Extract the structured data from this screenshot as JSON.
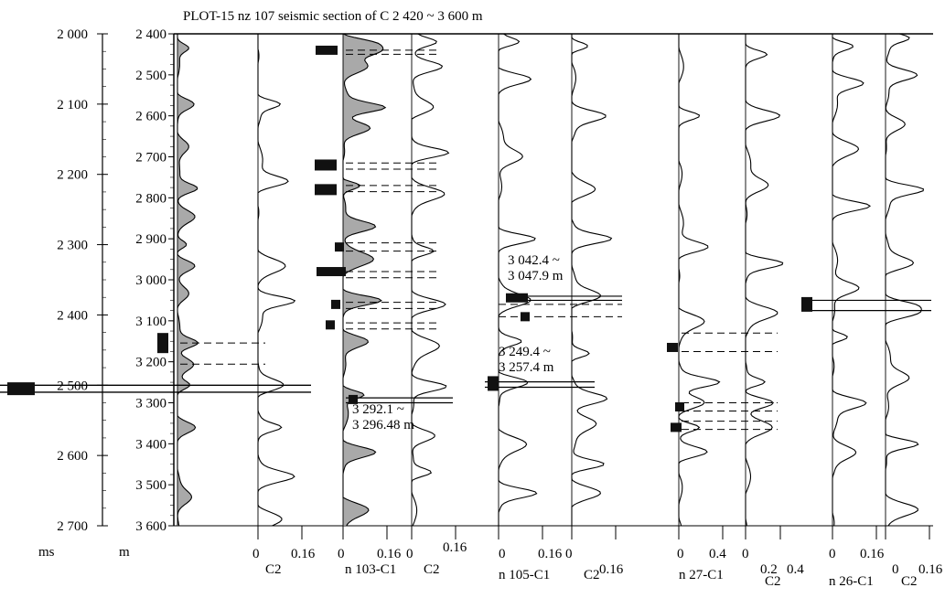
{
  "chart_data": {
    "type": "line",
    "title": "PLOT-15 nz 107  seismic section  of  C  2 420 ~  3 600 m",
    "time_axis": {
      "unit_label": "ms",
      "range": [
        2000,
        2700
      ],
      "ticks": [
        "2 000",
        "2 100",
        "2 200",
        "2 300",
        "2 400",
        "2 500",
        "2 600",
        "2 700"
      ]
    },
    "depth_axis": {
      "unit_label": "m",
      "range": [
        2400,
        3600
      ],
      "ticks": [
        "2 400",
        "2 500",
        "2 600",
        "2 700",
        "2 800",
        "2 900",
        "3 000",
        "3 100",
        "3 200",
        "3 300",
        "3 400",
        "3 500",
        "3 600"
      ]
    },
    "bottom_labels": [
      {
        "text": "0",
        "row": 1
      },
      {
        "text": "0.16",
        "row": 1
      },
      {
        "text": "C2",
        "row": 2
      },
      {
        "text": "0",
        "row": 1
      },
      {
        "text": "0.16",
        "row": 1
      },
      {
        "text": "0",
        "row": 1
      },
      {
        "text": "0.16",
        "row": 0
      },
      {
        "text": "n 103-C1",
        "row": 2
      },
      {
        "text": "C2",
        "row": 2
      },
      {
        "text": "0",
        "row": 1
      },
      {
        "text": "0.16",
        "row": 1
      },
      {
        "text": "0",
        "row": 1
      },
      {
        "text": "0.16",
        "row": 2
      },
      {
        "text": "n 105-C1",
        "row": 3
      },
      {
        "text": "C2",
        "row": 3
      },
      {
        "text": "0",
        "row": 1
      },
      {
        "text": "0.4",
        "row": 1
      },
      {
        "text": "0",
        "row": 1
      },
      {
        "text": "0.2",
        "row": 2
      },
      {
        "text": "0.4",
        "row": 2
      },
      {
        "text": "n 27-C1",
        "row": 3
      },
      {
        "text": "C2",
        "row": 4
      },
      {
        "text": "0",
        "row": 1
      },
      {
        "text": "0.16",
        "row": 1
      },
      {
        "text": "0",
        "row": 2
      },
      {
        "text": "0.16",
        "row": 2
      },
      {
        "text": "n 26-C1",
        "row": 4
      },
      {
        "text": "C2",
        "row": 4
      }
    ],
    "annotations": [
      {
        "lines": [
          "3 292.1 ~",
          "3 296.48 m"
        ],
        "depth_top": 3292.1,
        "depth_bottom": 3296.48
      },
      {
        "lines": [
          "3 042.4 ~",
          "3 047.9 m"
        ],
        "depth_top": 3042.4,
        "depth_bottom": 3047.9
      },
      {
        "lines": [
          "3 249.4 ~",
          "3 257.4 m"
        ],
        "depth_top": 3249.4,
        "depth_bottom": 3257.4
      }
    ],
    "traces": [
      {
        "track": 0,
        "baseline_time_ms": "left edge",
        "fill": true,
        "peaks_time_ms": [
          2020,
          2100,
          2160,
          2220,
          2260,
          2300,
          2330,
          2370,
          2440,
          2470,
          2500,
          2560,
          2660
        ]
      },
      {
        "track": 1,
        "peaks_time_ms": [
          2100,
          2210,
          2330,
          2380,
          2500,
          2560,
          2630,
          2690
        ]
      },
      {
        "track": 2,
        "peaks_depth_m": [
          2420,
          2440,
          2480,
          2580,
          2630,
          2770,
          2870,
          2950,
          3050,
          3150,
          3280,
          3420,
          3560
        ],
        "fill": true
      },
      {
        "track": 3,
        "peaks_depth_m": [
          2420,
          2480,
          2580,
          2690,
          2790,
          2930,
          3060,
          3160,
          3260,
          3380,
          3470
        ]
      },
      {
        "track": 4,
        "peaks_depth_m": [
          2420,
          2510,
          2700,
          2900,
          3050,
          3150,
          3250,
          3400,
          3520
        ]
      },
      {
        "track": 5,
        "peaks_depth_m": [
          2430,
          2600,
          2780,
          2900,
          3040,
          3180,
          3290,
          3350,
          3450,
          3520
        ]
      },
      {
        "track": 6,
        "peaks_depth_m": [
          2600,
          2920,
          3100,
          3250,
          3300,
          3360,
          3420
        ]
      },
      {
        "track": 7,
        "peaks_depth_m": [
          2450,
          2600,
          2770,
          2960,
          3080,
          3250,
          3300,
          3360
        ]
      },
      {
        "track": 8,
        "peaks_depth_m": [
          2430,
          2520,
          2680,
          2820,
          3020,
          3140,
          3300,
          3420
        ]
      },
      {
        "track": 9,
        "peaks_depth_m": [
          2410,
          2500,
          2620,
          2780,
          2960,
          3060,
          3080,
          3240,
          3400,
          3560
        ]
      }
    ],
    "markers": [
      {
        "track": 2,
        "depths_m": [
          2440,
          2720,
          2780,
          2920,
          2980,
          3060,
          3110,
          3292
        ]
      },
      {
        "track": 4,
        "depths_m": [
          3044,
          3090,
          3253
        ]
      },
      {
        "track": 6,
        "depths_m": [
          3165,
          3310,
          3360
        ]
      },
      {
        "track": 8,
        "depths_m": [
          3060
        ]
      },
      {
        "track": 0,
        "times_ms": [
          2440,
          2510
        ]
      }
    ],
    "dashed_pairs_m": [
      [
        2440,
        2450
      ],
      [
        2715,
        2730
      ],
      [
        2770,
        2785
      ],
      [
        2910,
        2930
      ],
      [
        2980,
        2995
      ],
      [
        3055,
        3070
      ],
      [
        3105,
        3120
      ],
      [
        3060,
        3090
      ],
      [
        3130,
        3175
      ],
      [
        3300,
        3320
      ],
      [
        3345,
        3365
      ]
    ],
    "grid": false
  }
}
